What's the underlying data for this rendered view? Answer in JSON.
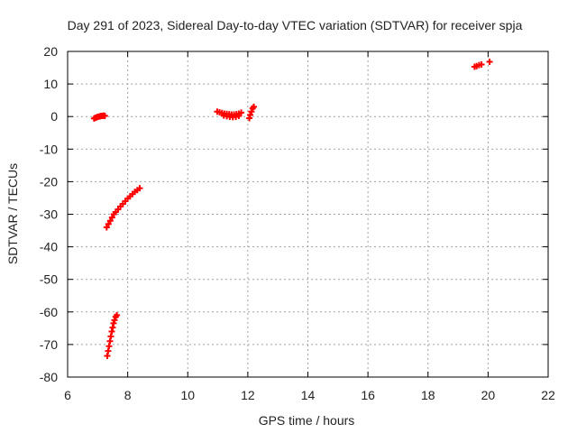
{
  "chart_data": {
    "type": "scatter",
    "title": "Day 291 of 2023, Sidereal Day-to-day VTEC variation (SDTVAR) for receiver spja",
    "xlabel": "GPS time / hours",
    "ylabel": "SDTVAR / TECUs",
    "xlim": [
      6,
      22
    ],
    "ylim": [
      -80,
      20
    ],
    "xticks": [
      6,
      8,
      10,
      12,
      14,
      16,
      18,
      20,
      22
    ],
    "yticks": [
      -80,
      -70,
      -60,
      -50,
      -40,
      -30,
      -20,
      -10,
      0,
      10,
      20
    ],
    "grid": true,
    "legend": "none",
    "marker": "plus",
    "color": "#ff0000",
    "series": [
      {
        "values": [
          [
            6.88,
            -0.6
          ],
          [
            6.92,
            -0.4
          ],
          [
            6.96,
            -0.3
          ],
          [
            7.0,
            -0.1
          ],
          [
            7.04,
            0.0
          ],
          [
            7.08,
            0.1
          ],
          [
            7.12,
            0.2
          ],
          [
            7.16,
            0.2
          ],
          [
            7.2,
            0.3
          ],
          [
            7.24,
            0.2
          ],
          [
            7.3,
            -34.0
          ],
          [
            7.36,
            -33.0
          ],
          [
            7.42,
            -32.0
          ],
          [
            7.48,
            -31.0
          ],
          [
            7.54,
            -30.0
          ],
          [
            7.6,
            -29.3
          ],
          [
            7.68,
            -28.5
          ],
          [
            7.76,
            -27.6
          ],
          [
            7.84,
            -26.8
          ],
          [
            7.92,
            -26.0
          ],
          [
            8.0,
            -25.2
          ],
          [
            8.08,
            -24.5
          ],
          [
            8.16,
            -23.8
          ],
          [
            8.24,
            -23.1
          ],
          [
            8.32,
            -22.6
          ],
          [
            8.4,
            -22.0
          ],
          [
            7.32,
            -73.5
          ],
          [
            7.35,
            -72.0
          ],
          [
            7.38,
            -70.5
          ],
          [
            7.41,
            -69.0
          ],
          [
            7.44,
            -67.5
          ],
          [
            7.47,
            -66.0
          ],
          [
            7.5,
            -64.8
          ],
          [
            7.53,
            -63.5
          ],
          [
            7.56,
            -62.5
          ],
          [
            7.6,
            -61.5
          ],
          [
            7.64,
            -61.0
          ],
          [
            10.98,
            1.5
          ],
          [
            11.06,
            1.3
          ],
          [
            11.14,
            1.1
          ],
          [
            11.22,
            0.9
          ],
          [
            11.3,
            0.8
          ],
          [
            11.38,
            0.7
          ],
          [
            11.46,
            0.6
          ],
          [
            11.54,
            0.6
          ],
          [
            11.62,
            0.7
          ],
          [
            11.7,
            0.9
          ],
          [
            11.78,
            1.2
          ],
          [
            11.2,
            0.3
          ],
          [
            11.3,
            0.1
          ],
          [
            11.4,
            -0.1
          ],
          [
            11.5,
            -0.2
          ],
          [
            11.6,
            -0.1
          ],
          [
            11.7,
            0.2
          ],
          [
            12.05,
            -0.5
          ],
          [
            12.08,
            0.5
          ],
          [
            12.12,
            1.5
          ],
          [
            12.16,
            2.5
          ],
          [
            12.2,
            3.0
          ],
          [
            19.55,
            15.3
          ],
          [
            19.62,
            15.5
          ],
          [
            19.7,
            15.8
          ],
          [
            19.78,
            16.0
          ],
          [
            20.05,
            16.8
          ]
        ]
      }
    ]
  }
}
